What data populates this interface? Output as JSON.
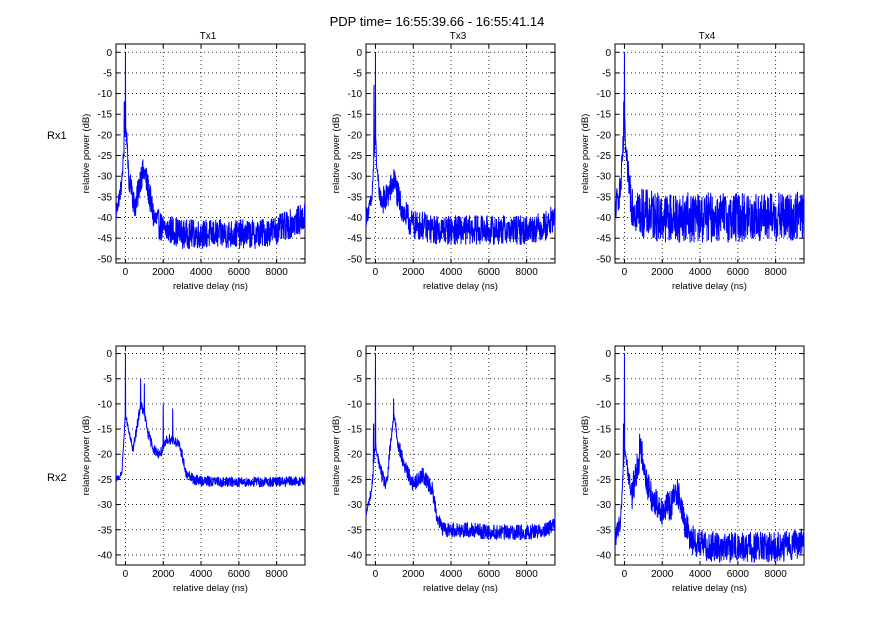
{
  "figure": {
    "title": "PDP time= 16:55:39.66 - 16:55:41.14",
    "column_titles": [
      "Tx1",
      "Tx3",
      "Tx4"
    ],
    "row_labels": [
      "Rx1",
      "Rx2"
    ]
  },
  "colors": {
    "line": "#0000ff",
    "axes": "#000000",
    "background": "#ffffff"
  },
  "chart_data": [
    {
      "type": "line",
      "row": "Rx1",
      "column": "Tx1",
      "xlabel": "relative delay (ns)",
      "ylabel": "relative power (dB)",
      "xlim": [
        -500,
        9500
      ],
      "ylim": [
        -51,
        2
      ],
      "xticks": [
        0,
        2000,
        4000,
        6000,
        8000
      ],
      "yticks": [
        0,
        -5,
        -10,
        -15,
        -20,
        -25,
        -30,
        -35,
        -40,
        -45,
        -50
      ],
      "grid": true,
      "series": [
        {
          "name": "PDP",
          "x": [
            -500,
            -200,
            0,
            100,
            180,
            300,
            450,
            600,
            800,
            1000,
            1200,
            1500,
            2000,
            2500,
            3000,
            4000,
            5000,
            6000,
            7000,
            8000,
            9000,
            9500
          ],
          "y": [
            -39,
            -32,
            -18,
            -22,
            -33,
            -31,
            -37,
            -36,
            -30,
            -29,
            -33,
            -40,
            -43,
            -43,
            -44,
            -44,
            -44,
            -44,
            -44,
            -43,
            -41,
            -40
          ],
          "peaks": [
            [
              0,
              0
            ],
            [
              -60,
              -12
            ]
          ],
          "noise_db": 3.5
        }
      ]
    },
    {
      "type": "line",
      "row": "Rx1",
      "column": "Tx3",
      "xlabel": "relative delay (ns)",
      "ylabel": "relative power (dB)",
      "xlim": [
        -500,
        9500
      ],
      "ylim": [
        -51,
        2
      ],
      "xticks": [
        0,
        2000,
        4000,
        6000,
        8000
      ],
      "yticks": [
        0,
        -5,
        -10,
        -15,
        -20,
        -25,
        -30,
        -35,
        -40,
        -45,
        -50
      ],
      "grid": true,
      "series": [
        {
          "name": "PDP",
          "x": [
            -500,
            -200,
            0,
            100,
            250,
            500,
            800,
            1000,
            1200,
            1500,
            2000,
            2500,
            3000,
            4000,
            5000,
            6000,
            7000,
            8000,
            9000,
            9500
          ],
          "y": [
            -40,
            -36,
            -20,
            -30,
            -35,
            -36,
            -33,
            -31,
            -35,
            -39,
            -42,
            -42,
            -43,
            -43,
            -43,
            -43,
            -43,
            -43,
            -42,
            -40
          ],
          "peaks": [
            [
              0,
              0
            ],
            [
              -80,
              -8
            ]
          ],
          "noise_db": 3.5
        }
      ]
    },
    {
      "type": "line",
      "row": "Rx1",
      "column": "Tx4",
      "xlabel": "relative delay (ns)",
      "ylabel": "relative power (dB)",
      "xlim": [
        -500,
        9500
      ],
      "ylim": [
        -51,
        2
      ],
      "xticks": [
        0,
        2000,
        4000,
        6000,
        8000
      ],
      "yticks": [
        0,
        -5,
        -10,
        -15,
        -20,
        -25,
        -30,
        -35,
        -40,
        -45,
        -50
      ],
      "grid": true,
      "series": [
        {
          "name": "PDP",
          "x": [
            -500,
            -200,
            0,
            100,
            200,
            400,
            600,
            1000,
            2000,
            3000,
            4000,
            5000,
            6000,
            7000,
            8000,
            9000,
            9500
          ],
          "y": [
            -38,
            -33,
            -18,
            -26,
            -30,
            -36,
            -38,
            -39,
            -40,
            -40,
            -40,
            -40,
            -40,
            -40,
            -40,
            -40,
            -39
          ],
          "peaks": [
            [
              0,
              0
            ],
            [
              -40,
              -12
            ]
          ],
          "noise_db": 6
        }
      ]
    },
    {
      "type": "line",
      "row": "Rx2",
      "column": "Tx1",
      "xlabel": "relative delay (ns)",
      "ylabel": "relative power (dB)",
      "xlim": [
        -500,
        9500
      ],
      "ylim": [
        -42,
        1.5
      ],
      "xticks": [
        0,
        2000,
        4000,
        6000,
        8000
      ],
      "yticks": [
        0,
        -5,
        -10,
        -15,
        -20,
        -25,
        -30,
        -35,
        -40
      ],
      "grid": true,
      "series": [
        {
          "name": "PDP",
          "x": [
            -500,
            -200,
            0,
            200,
            400,
            600,
            800,
            1000,
            1200,
            1500,
            1800,
            2000,
            2200,
            2500,
            2800,
            3000,
            3200,
            3600,
            4000,
            5000,
            6000,
            7000,
            8000,
            9000,
            9500
          ],
          "y": [
            -25,
            -24,
            -12,
            -16,
            -19,
            -15,
            -10,
            -12,
            -16,
            -19,
            -20,
            -19,
            -17,
            -17,
            -18,
            -20,
            -24,
            -25,
            -25.3,
            -25.5,
            -25.5,
            -25.5,
            -25.5,
            -25.4,
            -25.3
          ],
          "peaks": [
            [
              0,
              0
            ],
            [
              800,
              -5
            ],
            [
              1000,
              -6
            ],
            [
              2000,
              -10
            ],
            [
              2500,
              -11
            ]
          ],
          "noise_db": 1
        }
      ]
    },
    {
      "type": "line",
      "row": "Rx2",
      "column": "Tx3",
      "xlabel": "relative delay (ns)",
      "ylabel": "relative power (dB)",
      "xlim": [
        -500,
        9500
      ],
      "ylim": [
        -42,
        1.5
      ],
      "xticks": [
        0,
        2000,
        4000,
        6000,
        8000
      ],
      "yticks": [
        0,
        -5,
        -10,
        -15,
        -20,
        -25,
        -30,
        -35,
        -40
      ],
      "grid": true,
      "series": [
        {
          "name": "PDP",
          "x": [
            -500,
            -200,
            0,
            200,
            400,
            600,
            800,
            1000,
            1200,
            1500,
            2000,
            2500,
            3000,
            3300,
            3600,
            4000,
            5000,
            6000,
            7000,
            8000,
            9000,
            9500
          ],
          "y": [
            -32,
            -27,
            -18,
            -22,
            -25,
            -26,
            -18,
            -12,
            -18,
            -22,
            -26,
            -24,
            -27,
            -33,
            -35,
            -35,
            -35,
            -35.5,
            -35.5,
            -35.5,
            -35,
            -34
          ],
          "peaks": [
            [
              0,
              0
            ],
            [
              960,
              -9
            ],
            [
              -100,
              -14
            ]
          ],
          "noise_db": 1.5
        }
      ]
    },
    {
      "type": "line",
      "row": "Rx2",
      "column": "Tx4",
      "xlabel": "relative delay (ns)",
      "ylabel": "relative power (dB)",
      "xlim": [
        -500,
        9500
      ],
      "ylim": [
        -42,
        1.5
      ],
      "xticks": [
        0,
        2000,
        4000,
        6000,
        8000
      ],
      "yticks": [
        0,
        -5,
        -10,
        -15,
        -20,
        -25,
        -30,
        -35,
        -40
      ],
      "grid": true,
      "series": [
        {
          "name": "PDP",
          "x": [
            -500,
            -200,
            0,
            200,
            400,
            700,
            900,
            1200,
            1500,
            2000,
            2500,
            2800,
            3200,
            3600,
            4000,
            5000,
            6000,
            7000,
            8000,
            9000,
            9500
          ],
          "y": [
            -37,
            -33,
            -18,
            -24,
            -28,
            -22,
            -19,
            -26,
            -29,
            -31,
            -30,
            -27,
            -34,
            -37,
            -38,
            -38.5,
            -38.5,
            -38.5,
            -38.5,
            -38,
            -37
          ],
          "peaks": [
            [
              0,
              0
            ],
            [
              800,
              -16
            ],
            [
              2800,
              -25
            ],
            [
              -50,
              -14
            ]
          ],
          "noise_db": 3
        }
      ]
    }
  ]
}
